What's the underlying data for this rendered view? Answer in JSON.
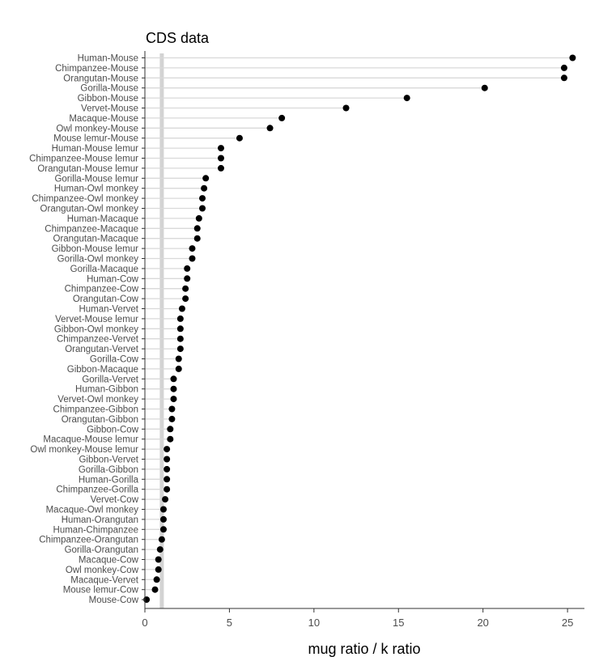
{
  "chart_data": {
    "type": "scatter",
    "title": "CDS data",
    "xlabel": "mug ratio / k ratio",
    "ylabel": "",
    "xlim": [
      0,
      26
    ],
    "xticks": [
      0,
      5,
      10,
      15,
      20,
      25
    ],
    "reference_line": 1,
    "grid": false,
    "legend": "none",
    "colors": {
      "point": "#000000",
      "segment": "#d9d9d9",
      "reference": "#d3d3d3",
      "axis": "#333333"
    },
    "points": [
      {
        "label": "Human-Mouse",
        "value": 25.3
      },
      {
        "label": "Chimpanzee-Mouse",
        "value": 24.8
      },
      {
        "label": "Orangutan-Mouse",
        "value": 24.8
      },
      {
        "label": "Gorilla-Mouse",
        "value": 20.1
      },
      {
        "label": "Gibbon-Mouse",
        "value": 15.5
      },
      {
        "label": "Vervet-Mouse",
        "value": 11.9
      },
      {
        "label": "Macaque-Mouse",
        "value": 8.1
      },
      {
        "label": "Owl monkey-Mouse",
        "value": 7.4
      },
      {
        "label": "Mouse lemur-Mouse",
        "value": 5.6
      },
      {
        "label": "Human-Mouse lemur",
        "value": 4.5
      },
      {
        "label": "Chimpanzee-Mouse lemur",
        "value": 4.5
      },
      {
        "label": "Orangutan-Mouse lemur",
        "value": 4.5
      },
      {
        "label": "Gorilla-Mouse lemur",
        "value": 3.6
      },
      {
        "label": "Human-Owl monkey",
        "value": 3.5
      },
      {
        "label": "Chimpanzee-Owl monkey",
        "value": 3.4
      },
      {
        "label": "Orangutan-Owl monkey",
        "value": 3.4
      },
      {
        "label": "Human-Macaque",
        "value": 3.2
      },
      {
        "label": "Chimpanzee-Macaque",
        "value": 3.1
      },
      {
        "label": "Orangutan-Macaque",
        "value": 3.1
      },
      {
        "label": "Gibbon-Mouse lemur",
        "value": 2.8
      },
      {
        "label": "Gorilla-Owl monkey",
        "value": 2.8
      },
      {
        "label": "Gorilla-Macaque",
        "value": 2.5
      },
      {
        "label": "Human-Cow",
        "value": 2.5
      },
      {
        "label": "Chimpanzee-Cow",
        "value": 2.4
      },
      {
        "label": "Orangutan-Cow",
        "value": 2.4
      },
      {
        "label": "Human-Vervet",
        "value": 2.2
      },
      {
        "label": "Vervet-Mouse lemur",
        "value": 2.1
      },
      {
        "label": "Gibbon-Owl monkey",
        "value": 2.1
      },
      {
        "label": "Chimpanzee-Vervet",
        "value": 2.1
      },
      {
        "label": "Orangutan-Vervet",
        "value": 2.1
      },
      {
        "label": "Gorilla-Cow",
        "value": 2.0
      },
      {
        "label": "Gibbon-Macaque",
        "value": 2.0
      },
      {
        "label": "Gorilla-Vervet",
        "value": 1.7
      },
      {
        "label": "Human-Gibbon",
        "value": 1.7
      },
      {
        "label": "Vervet-Owl monkey",
        "value": 1.7
      },
      {
        "label": "Chimpanzee-Gibbon",
        "value": 1.6
      },
      {
        "label": "Orangutan-Gibbon",
        "value": 1.6
      },
      {
        "label": "Gibbon-Cow",
        "value": 1.5
      },
      {
        "label": "Macaque-Mouse lemur",
        "value": 1.5
      },
      {
        "label": "Owl monkey-Mouse lemur",
        "value": 1.3
      },
      {
        "label": "Gibbon-Vervet",
        "value": 1.3
      },
      {
        "label": "Gorilla-Gibbon",
        "value": 1.3
      },
      {
        "label": "Human-Gorilla",
        "value": 1.3
      },
      {
        "label": "Chimpanzee-Gorilla",
        "value": 1.3
      },
      {
        "label": "Vervet-Cow",
        "value": 1.2
      },
      {
        "label": "Macaque-Owl monkey",
        "value": 1.1
      },
      {
        "label": "Human-Orangutan",
        "value": 1.1
      },
      {
        "label": "Human-Chimpanzee",
        "value": 1.1
      },
      {
        "label": "Chimpanzee-Orangutan",
        "value": 1.0
      },
      {
        "label": "Gorilla-Orangutan",
        "value": 0.9
      },
      {
        "label": "Macaque-Cow",
        "value": 0.8
      },
      {
        "label": "Owl monkey-Cow",
        "value": 0.8
      },
      {
        "label": "Macaque-Vervet",
        "value": 0.7
      },
      {
        "label": "Mouse lemur-Cow",
        "value": 0.6
      },
      {
        "label": "Mouse-Cow",
        "value": 0.1
      }
    ]
  }
}
